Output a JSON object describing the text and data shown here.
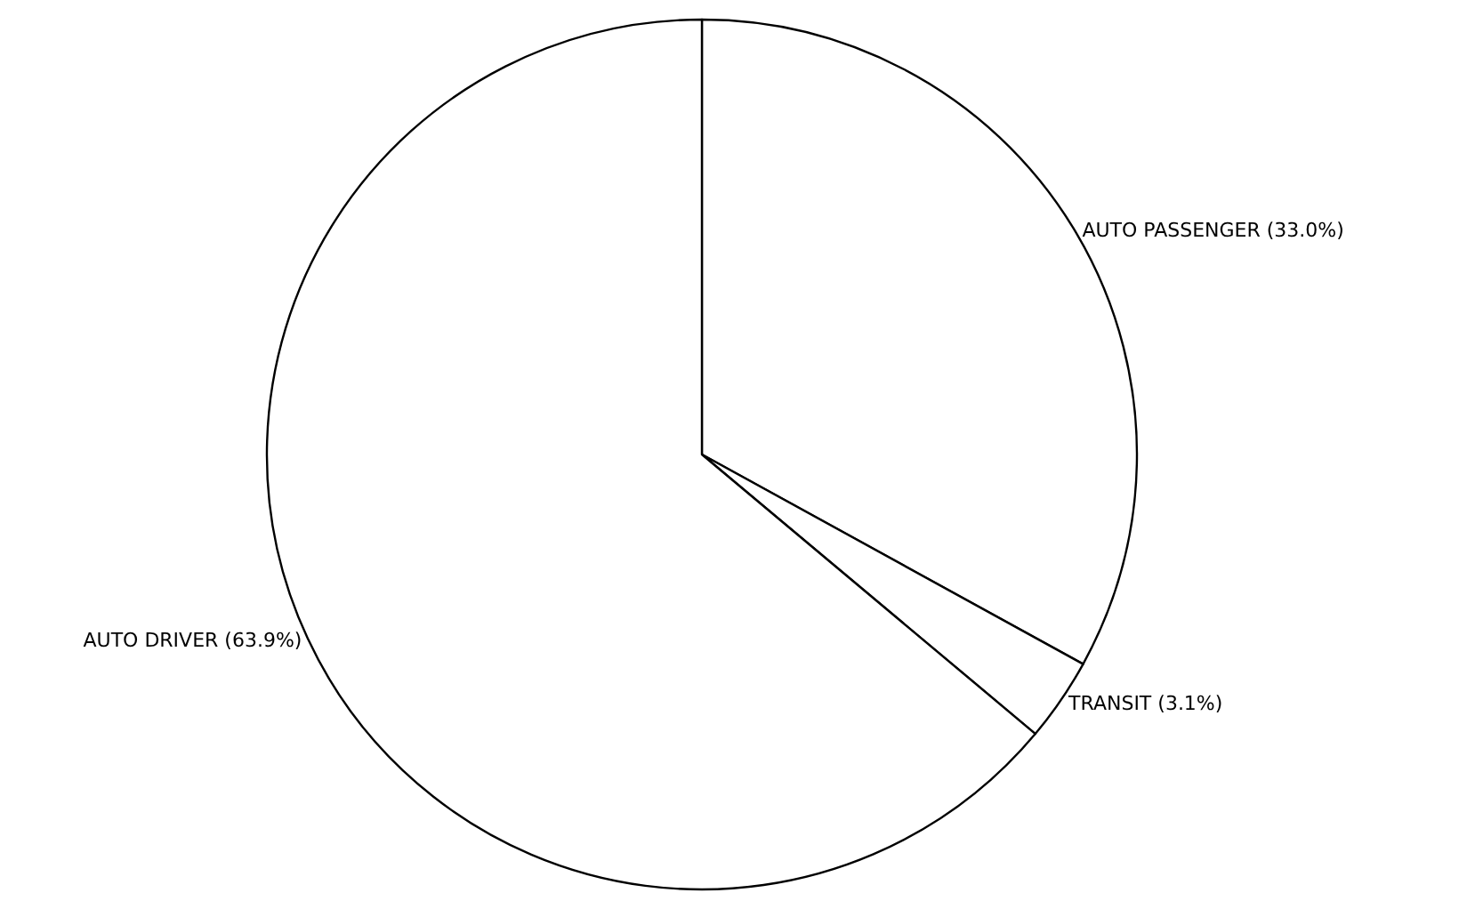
{
  "chart_data": {
    "type": "pie",
    "categories": [
      "AUTO PASSENGER",
      "TRANSIT",
      "AUTO DRIVER"
    ],
    "values": [
      33.0,
      3.1,
      63.9
    ],
    "value_labels": [
      "(33.0%)",
      "(3.1%)",
      "(63.9%)"
    ],
    "colors": [
      "#ffffff",
      "#ffffff",
      "#ffffff"
    ]
  }
}
